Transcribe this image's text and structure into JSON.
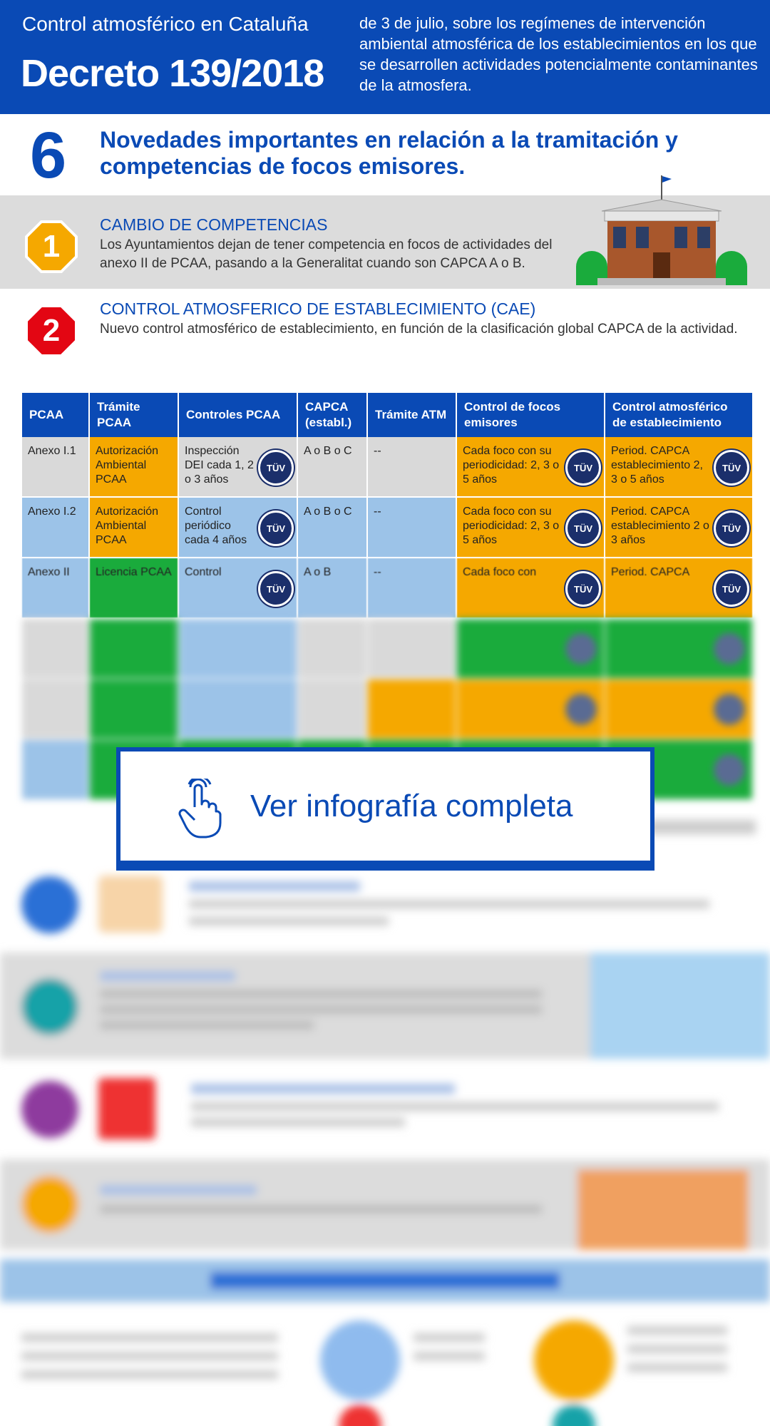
{
  "header": {
    "subtitle": "Control atmosférico en Cataluña",
    "title": "Decreto 139/2018",
    "description": "de 3 de julio, sobre los regímenes de intervención ambiental atmosférica de los establecimientos en los que se desarrollen actividades potencialmente contaminantes de la atmosfera."
  },
  "intro": {
    "number": "6",
    "heading": "Novedades importantes en relación a la tramitación y competencias de focos emisores."
  },
  "items": [
    {
      "number": "1",
      "title": "CAMBIO DE COMPETENCIAS",
      "text": "Los Ayuntamientos dejan de tener competencia en focos de actividades del anexo II de PCAA, pasando a la Generalitat cuando son CAPCA A o B.",
      "color": "#f5a800"
    },
    {
      "number": "2",
      "title": "CONTROL ATMOSFERICO DE ESTABLECIMIENTO (CAE)",
      "text": "Nuevo control atmosférico de establecimiento, en función de la clasificación global CAPCA de la actividad.",
      "color": "#e30613"
    }
  ],
  "table": {
    "headers": [
      "PCAA",
      "Trámite PCAA",
      "Controles PCAA",
      "CAPCA (establ.)",
      "Trámite ATM",
      "Control de focos emisores",
      "Control atmosférico de establecimiento"
    ],
    "badge_label": "TÜV",
    "rows": [
      {
        "cells": [
          "Anexo I.1",
          "Autorización Ambiental PCAA",
          "Inspección DEI cada 1, 2 o 3 años",
          "A o B o C",
          "--",
          "Cada foco con su periodicidad: 2, 3 o 5 años",
          "Period. CAPCA establecimiento 2, 3 o 5 años"
        ],
        "colors": [
          "#d9d9d9",
          "#f5a800",
          "#d9d9d9",
          "#d9d9d9",
          "#d9d9d9",
          "#f5a800",
          "#f5a800"
        ]
      },
      {
        "cells": [
          "Anexo I.2",
          "Autorización Ambiental PCAA",
          "Control periódico cada 4 años",
          "A o B o C",
          "--",
          "Cada foco con su periodicidad: 2, 3 o 5 años",
          "Period. CAPCA establecimiento 2 o 3 años"
        ],
        "colors": [
          "#9cc3e8",
          "#f5a800",
          "#9cc3e8",
          "#9cc3e8",
          "#9cc3e8",
          "#f5a800",
          "#f5a800"
        ]
      },
      {
        "cells": [
          "Anexo II",
          "Licencia PCAA",
          "Control",
          "A o B",
          "--",
          "Cada foco con",
          "Period. CAPCA"
        ],
        "colors": [
          "#9cc3e8",
          "#1aab3c",
          "#9cc3e8",
          "#9cc3e8",
          "#9cc3e8",
          "#f5a800",
          "#f5a800"
        ]
      }
    ]
  },
  "cta": {
    "label": "Ver infografía completa"
  }
}
